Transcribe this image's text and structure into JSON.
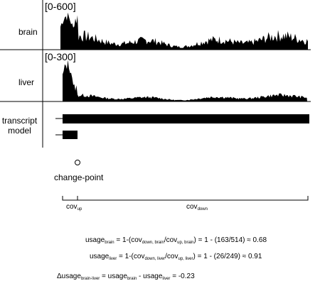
{
  "tracks": {
    "brain": {
      "label": "brain",
      "range": "[0-600]"
    },
    "liver": {
      "label": "liver",
      "range": "[0-300]"
    }
  },
  "transcript_model": {
    "label_line1": "transcript",
    "label_line2": "model"
  },
  "change_point": {
    "label": "change-point"
  },
  "coverage_axis": {
    "cov_up": {
      "main": "cov",
      "sub": "up"
    },
    "cov_down": {
      "main": "cov",
      "sub": "down"
    }
  },
  "formulas": {
    "usage_brain": {
      "lhs": "usage",
      "lhs_sub": "brain",
      "p1": " = 1-(cov",
      "s1": "down, brain",
      "p2": "/cov",
      "s2": "up, brain",
      "p3": ") = 1 - (163/514) ≈ 0.68"
    },
    "usage_liver": {
      "lhs": "usage",
      "lhs_sub": "liver",
      "p1": " = 1-(cov",
      "s1": "down, liver",
      "p2": "/cov",
      "s2": "up, liver",
      "p3": ") = 1 - (26/249) ≈ 0.91"
    },
    "delta_usage": {
      "lhs": "Δusage",
      "lhs_sub": "brain-liver",
      "p1": " = usage",
      "s1": "brain",
      "p2": " - usage",
      "s2": "liver",
      "p3": " = -0.23"
    }
  },
  "colors": {
    "track_fill": "#000000",
    "line": "#000000"
  }
}
